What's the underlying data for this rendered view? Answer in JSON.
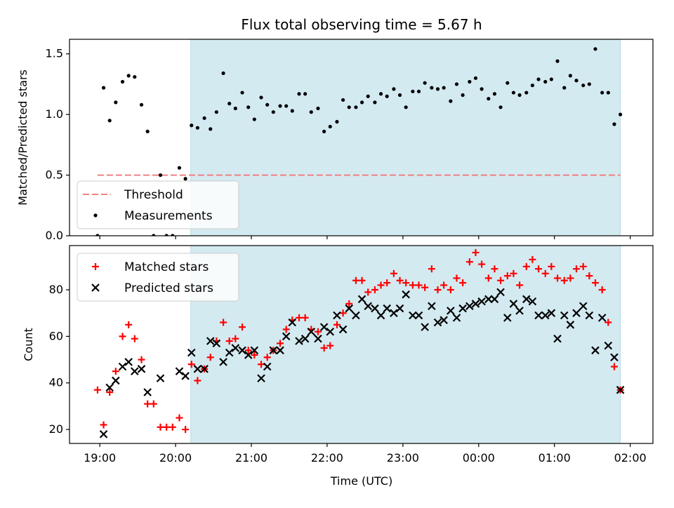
{
  "figure": {
    "title": "Flux total observing time = 5.67 h",
    "xlabel": "Time (UTC)",
    "xticks": [
      {
        "t": 19.0,
        "label": "19:00"
      },
      {
        "t": 20.0,
        "label": "20:00"
      },
      {
        "t": 21.0,
        "label": "21:00"
      },
      {
        "t": 22.0,
        "label": "22:00"
      },
      {
        "t": 23.0,
        "label": "23:00"
      },
      {
        "t": 24.0,
        "label": "00:00"
      },
      {
        "t": 25.0,
        "label": "01:00"
      },
      {
        "t": 26.0,
        "label": "02:00"
      }
    ],
    "xlim": [
      18.6,
      26.3
    ],
    "shaded_span": {
      "start": 20.2,
      "end": 25.87,
      "color": "#d4eaf1"
    }
  },
  "chart_data": [
    {
      "type": "scatter",
      "ylabel": "Matched/Predicted stars",
      "ylim": [
        0,
        1.62
      ],
      "yticks": [
        0.0,
        0.5,
        1.0,
        1.5
      ],
      "ytick_labels": [
        "0.0",
        "0.5",
        "1.0",
        "1.5"
      ],
      "legend_position": "lower-left",
      "threshold": {
        "name": "Threshold",
        "y": 0.5,
        "x_start": 18.97,
        "x_end": 25.87,
        "color": "#f08080"
      },
      "series": [
        {
          "name": "Measurements",
          "color": "#000000",
          "x": [
            18.97,
            19.05,
            19.13,
            19.21,
            19.3,
            19.38,
            19.46,
            19.55,
            19.63,
            19.71,
            19.8,
            19.88,
            19.96,
            20.05,
            20.13,
            20.21,
            20.29,
            20.38,
            20.46,
            20.54,
            20.63,
            20.71,
            20.79,
            20.88,
            20.96,
            21.04,
            21.13,
            21.21,
            21.29,
            21.38,
            21.46,
            21.54,
            21.63,
            21.71,
            21.79,
            21.88,
            21.96,
            22.04,
            22.13,
            22.21,
            22.29,
            22.38,
            22.46,
            22.54,
            22.63,
            22.71,
            22.79,
            22.88,
            22.96,
            23.04,
            23.13,
            23.21,
            23.29,
            23.38,
            23.46,
            23.54,
            23.63,
            23.71,
            23.79,
            23.88,
            23.96,
            24.04,
            24.13,
            24.21,
            24.29,
            24.38,
            24.46,
            24.54,
            24.63,
            24.71,
            24.79,
            24.88,
            24.96,
            25.04,
            25.13,
            25.21,
            25.29,
            25.38,
            25.46,
            25.54,
            25.63,
            25.71,
            25.79,
            25.87
          ],
          "y": [
            0.0,
            1.22,
            0.95,
            1.1,
            1.27,
            1.32,
            1.31,
            1.08,
            0.86,
            0.0,
            0.5,
            0.0,
            0.0,
            0.56,
            0.47,
            0.91,
            0.89,
            0.97,
            0.88,
            1.02,
            1.34,
            1.09,
            1.05,
            1.18,
            1.06,
            0.96,
            1.14,
            1.08,
            1.02,
            1.07,
            1.07,
            1.03,
            1.17,
            1.17,
            1.02,
            1.05,
            0.86,
            0.9,
            0.94,
            1.12,
            1.06,
            1.06,
            1.1,
            1.15,
            1.1,
            1.17,
            1.15,
            1.21,
            1.16,
            1.06,
            1.19,
            1.19,
            1.26,
            1.22,
            1.21,
            1.22,
            1.11,
            1.25,
            1.16,
            1.27,
            1.3,
            1.21,
            1.13,
            1.17,
            1.06,
            1.26,
            1.18,
            1.16,
            1.18,
            1.24,
            1.29,
            1.27,
            1.29,
            1.44,
            1.22,
            1.32,
            1.28,
            1.24,
            1.25,
            1.54,
            1.18,
            1.18,
            0.92,
            1.0
          ]
        }
      ]
    },
    {
      "type": "scatter",
      "ylabel": "Count",
      "ylim": [
        14,
        99
      ],
      "yticks": [
        20,
        40,
        60,
        80
      ],
      "ytick_labels": [
        "20",
        "40",
        "60",
        "80"
      ],
      "legend_position": "upper-left",
      "series": [
        {
          "name": "Matched stars",
          "marker": "plus",
          "color": "#ff0000",
          "x": [
            18.97,
            19.05,
            19.13,
            19.21,
            19.3,
            19.38,
            19.46,
            19.55,
            19.63,
            19.71,
            19.8,
            19.88,
            19.96,
            20.05,
            20.13,
            20.21,
            20.29,
            20.38,
            20.46,
            20.54,
            20.63,
            20.71,
            20.79,
            20.88,
            20.96,
            21.04,
            21.13,
            21.21,
            21.29,
            21.38,
            21.46,
            21.54,
            21.63,
            21.71,
            21.79,
            21.88,
            21.96,
            22.04,
            22.13,
            22.21,
            22.29,
            22.38,
            22.46,
            22.54,
            22.63,
            22.71,
            22.79,
            22.88,
            22.96,
            23.04,
            23.13,
            23.21,
            23.29,
            23.38,
            23.46,
            23.54,
            23.63,
            23.71,
            23.79,
            23.88,
            23.96,
            24.04,
            24.13,
            24.21,
            24.29,
            24.38,
            24.46,
            24.54,
            24.63,
            24.71,
            24.79,
            24.88,
            24.96,
            25.04,
            25.13,
            25.21,
            25.29,
            25.38,
            25.46,
            25.54,
            25.63,
            25.71,
            25.79,
            25.87
          ],
          "y": [
            37,
            22,
            36,
            45,
            60,
            65,
            59,
            50,
            31,
            31,
            21,
            21,
            21,
            25,
            20,
            48,
            41,
            46,
            51,
            58,
            66,
            58,
            59,
            64,
            54,
            52,
            48,
            51,
            54,
            57,
            63,
            67,
            68,
            68,
            63,
            62,
            55,
            56,
            65,
            70,
            74,
            84,
            84,
            79,
            80,
            82,
            83,
            87,
            84,
            83,
            82,
            82,
            81,
            89,
            80,
            82,
            80,
            85,
            83,
            92,
            96,
            91,
            85,
            89,
            84,
            86,
            87,
            82,
            90,
            93,
            89,
            87,
            90,
            85,
            84,
            85,
            89,
            90,
            86,
            83,
            80,
            66,
            47,
            37
          ]
        },
        {
          "name": "Predicted stars",
          "marker": "x",
          "color": "#000000",
          "x": [
            19.05,
            19.13,
            19.21,
            19.3,
            19.38,
            19.46,
            19.55,
            19.63,
            19.8,
            20.05,
            20.13,
            20.21,
            20.29,
            20.38,
            20.46,
            20.54,
            20.63,
            20.71,
            20.79,
            20.88,
            20.96,
            21.04,
            21.13,
            21.21,
            21.29,
            21.38,
            21.46,
            21.54,
            21.63,
            21.71,
            21.79,
            21.88,
            21.96,
            22.04,
            22.13,
            22.21,
            22.29,
            22.38,
            22.46,
            22.54,
            22.63,
            22.71,
            22.79,
            22.88,
            22.96,
            23.04,
            23.13,
            23.21,
            23.29,
            23.38,
            23.46,
            23.54,
            23.63,
            23.71,
            23.79,
            23.88,
            23.96,
            24.04,
            24.13,
            24.21,
            24.29,
            24.38,
            24.46,
            24.54,
            24.63,
            24.71,
            24.79,
            24.88,
            24.96,
            25.04,
            25.13,
            25.21,
            25.29,
            25.38,
            25.46,
            25.54,
            25.63,
            25.71,
            25.79,
            25.87
          ],
          "y": [
            18,
            38,
            41,
            47,
            49,
            45,
            46,
            36,
            42,
            45,
            43,
            53,
            46,
            46,
            58,
            57,
            49,
            53,
            55,
            54,
            52,
            54,
            42,
            47,
            54,
            54,
            60,
            66,
            58,
            59,
            62,
            59,
            64,
            62,
            69,
            63,
            72,
            69,
            76,
            73,
            72,
            69,
            72,
            70,
            72,
            78,
            69,
            69,
            64,
            73,
            66,
            67,
            71,
            68,
            72,
            73,
            74,
            75,
            76,
            76,
            79,
            68,
            74,
            71,
            76,
            75,
            69,
            69,
            70,
            59,
            69,
            65,
            70,
            73,
            69,
            54,
            68,
            56,
            51,
            37
          ]
        }
      ]
    }
  ]
}
